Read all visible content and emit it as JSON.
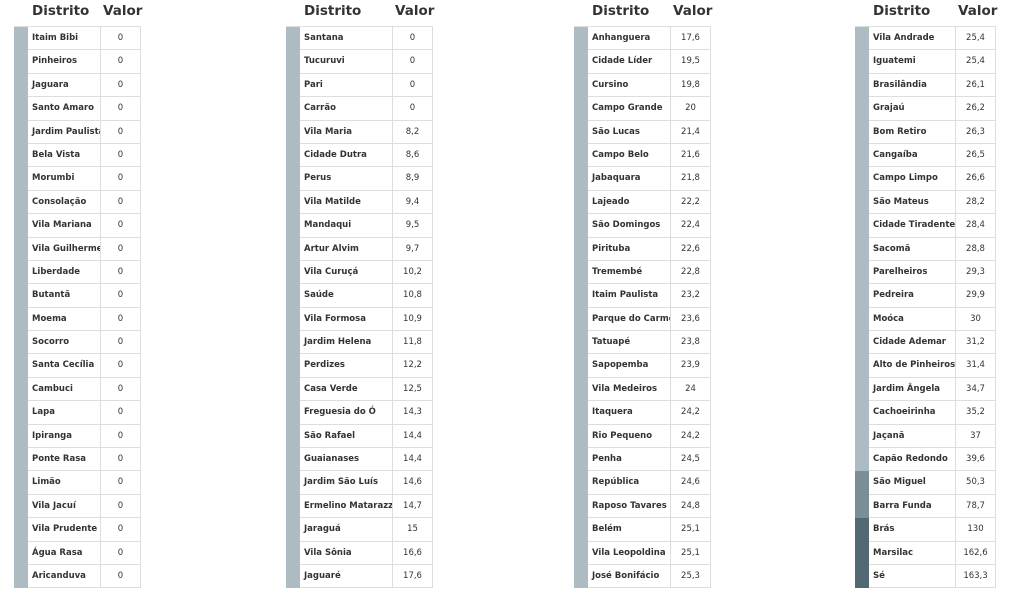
{
  "headers": {
    "district": "Distrito",
    "value": "Valor"
  },
  "colors": {
    "low": "#adbcc3",
    "mid": "#7a8e98",
    "high": "#526872"
  },
  "tables": [
    {
      "rows": [
        [
          "Itaim Bibi",
          "0"
        ],
        [
          "Pinheiros",
          "0"
        ],
        [
          "Jaguara",
          "0"
        ],
        [
          "Santo Amaro",
          "0"
        ],
        [
          "Jardim Paulista",
          "0"
        ],
        [
          "Bela Vista",
          "0"
        ],
        [
          "Morumbi",
          "0"
        ],
        [
          "Consolação",
          "0"
        ],
        [
          "Vila Mariana",
          "0"
        ],
        [
          "Vila Guilherme",
          "0"
        ],
        [
          "Liberdade",
          "0"
        ],
        [
          "Butantã",
          "0"
        ],
        [
          "Moema",
          "0"
        ],
        [
          "Socorro",
          "0"
        ],
        [
          "Santa Cecília",
          "0"
        ],
        [
          "Cambuci",
          "0"
        ],
        [
          "Lapa",
          "0"
        ],
        [
          "Ipiranga",
          "0"
        ],
        [
          "Ponte Rasa",
          "0"
        ],
        [
          "Limão",
          "0"
        ],
        [
          "Vila Jacuí",
          "0"
        ],
        [
          "Vila Prudente",
          "0"
        ],
        [
          "Água Rasa",
          "0"
        ],
        [
          "Aricanduva",
          "0"
        ]
      ]
    },
    {
      "rows": [
        [
          "Santana",
          "0"
        ],
        [
          "Tucuruvi",
          "0"
        ],
        [
          "Pari",
          "0"
        ],
        [
          "Carrão",
          "0"
        ],
        [
          "Vila Maria",
          "8,2"
        ],
        [
          "Cidade Dutra",
          "8,6"
        ],
        [
          "Perus",
          "8,9"
        ],
        [
          "Vila Matilde",
          "9,4"
        ],
        [
          "Mandaqui",
          "9,5"
        ],
        [
          "Artur Alvim",
          "9,7"
        ],
        [
          "Vila Curuçá",
          "10,2"
        ],
        [
          "Saúde",
          "10,8"
        ],
        [
          "Vila Formosa",
          "10,9"
        ],
        [
          "Jardim Helena",
          "11,8"
        ],
        [
          "Perdizes",
          "12,2"
        ],
        [
          "Casa Verde",
          "12,5"
        ],
        [
          "Freguesia do Ó",
          "14,3"
        ],
        [
          "São Rafael",
          "14,4"
        ],
        [
          "Guaianases",
          "14,4"
        ],
        [
          "Jardim São Luís",
          "14,6"
        ],
        [
          "Ermelino Matarazzo",
          "14,7"
        ],
        [
          "Jaraguá",
          "15"
        ],
        [
          "Vila Sônia",
          "16,6"
        ],
        [
          "Jaguaré",
          "17,6"
        ]
      ]
    },
    {
      "rows": [
        [
          "Anhanguera",
          "17,6"
        ],
        [
          "Cidade Líder",
          "19,5"
        ],
        [
          "Cursino",
          "19,8"
        ],
        [
          "Campo Grande",
          "20"
        ],
        [
          "São Lucas",
          "21,4"
        ],
        [
          "Campo Belo",
          "21,6"
        ],
        [
          "Jabaquara",
          "21,8"
        ],
        [
          "Lajeado",
          "22,2"
        ],
        [
          "São Domingos",
          "22,4"
        ],
        [
          "Pirituba",
          "22,6"
        ],
        [
          "Tremembé",
          "22,8"
        ],
        [
          "Itaim Paulista",
          "23,2"
        ],
        [
          "Parque do Carmo",
          "23,6"
        ],
        [
          "Tatuapé",
          "23,8"
        ],
        [
          "Sapopemba",
          "23,9"
        ],
        [
          "Vila Medeiros",
          "24"
        ],
        [
          "Itaquera",
          "24,2"
        ],
        [
          "Rio Pequeno",
          "24,2"
        ],
        [
          "Penha",
          "24,5"
        ],
        [
          "República",
          "24,6"
        ],
        [
          "Raposo Tavares",
          "24,8"
        ],
        [
          "Belém",
          "25,1"
        ],
        [
          "Vila Leopoldina",
          "25,1"
        ],
        [
          "José Bonifácio",
          "25,3"
        ]
      ]
    },
    {
      "rows": [
        [
          "Vila Andrade",
          "25,4"
        ],
        [
          "Iguatemi",
          "25,4"
        ],
        [
          "Brasilândia",
          "26,1"
        ],
        [
          "Grajaú",
          "26,2"
        ],
        [
          "Bom Retiro",
          "26,3"
        ],
        [
          "Cangaíba",
          "26,5"
        ],
        [
          "Campo Limpo",
          "26,6"
        ],
        [
          "São Mateus",
          "28,2"
        ],
        [
          "Cidade Tiradentes",
          "28,4"
        ],
        [
          "Sacomã",
          "28,8"
        ],
        [
          "Parelheiros",
          "29,3"
        ],
        [
          "Pedreira",
          "29,9"
        ],
        [
          "Moóca",
          "30"
        ],
        [
          "Cidade Ademar",
          "31,2"
        ],
        [
          "Alto de Pinheiros",
          "31,4"
        ],
        [
          "Jardim Ângela",
          "34,7"
        ],
        [
          "Cachoeirinha",
          "35,2"
        ],
        [
          "Jaçanã",
          "37"
        ],
        [
          "Capão Redondo",
          "39,6"
        ],
        [
          "São Miguel",
          "50,3"
        ],
        [
          "Barra Funda",
          "78,7"
        ],
        [
          "Brás",
          "130"
        ],
        [
          "Marsilac",
          "162,6"
        ],
        [
          "Sé",
          "163,3"
        ]
      ]
    }
  ]
}
